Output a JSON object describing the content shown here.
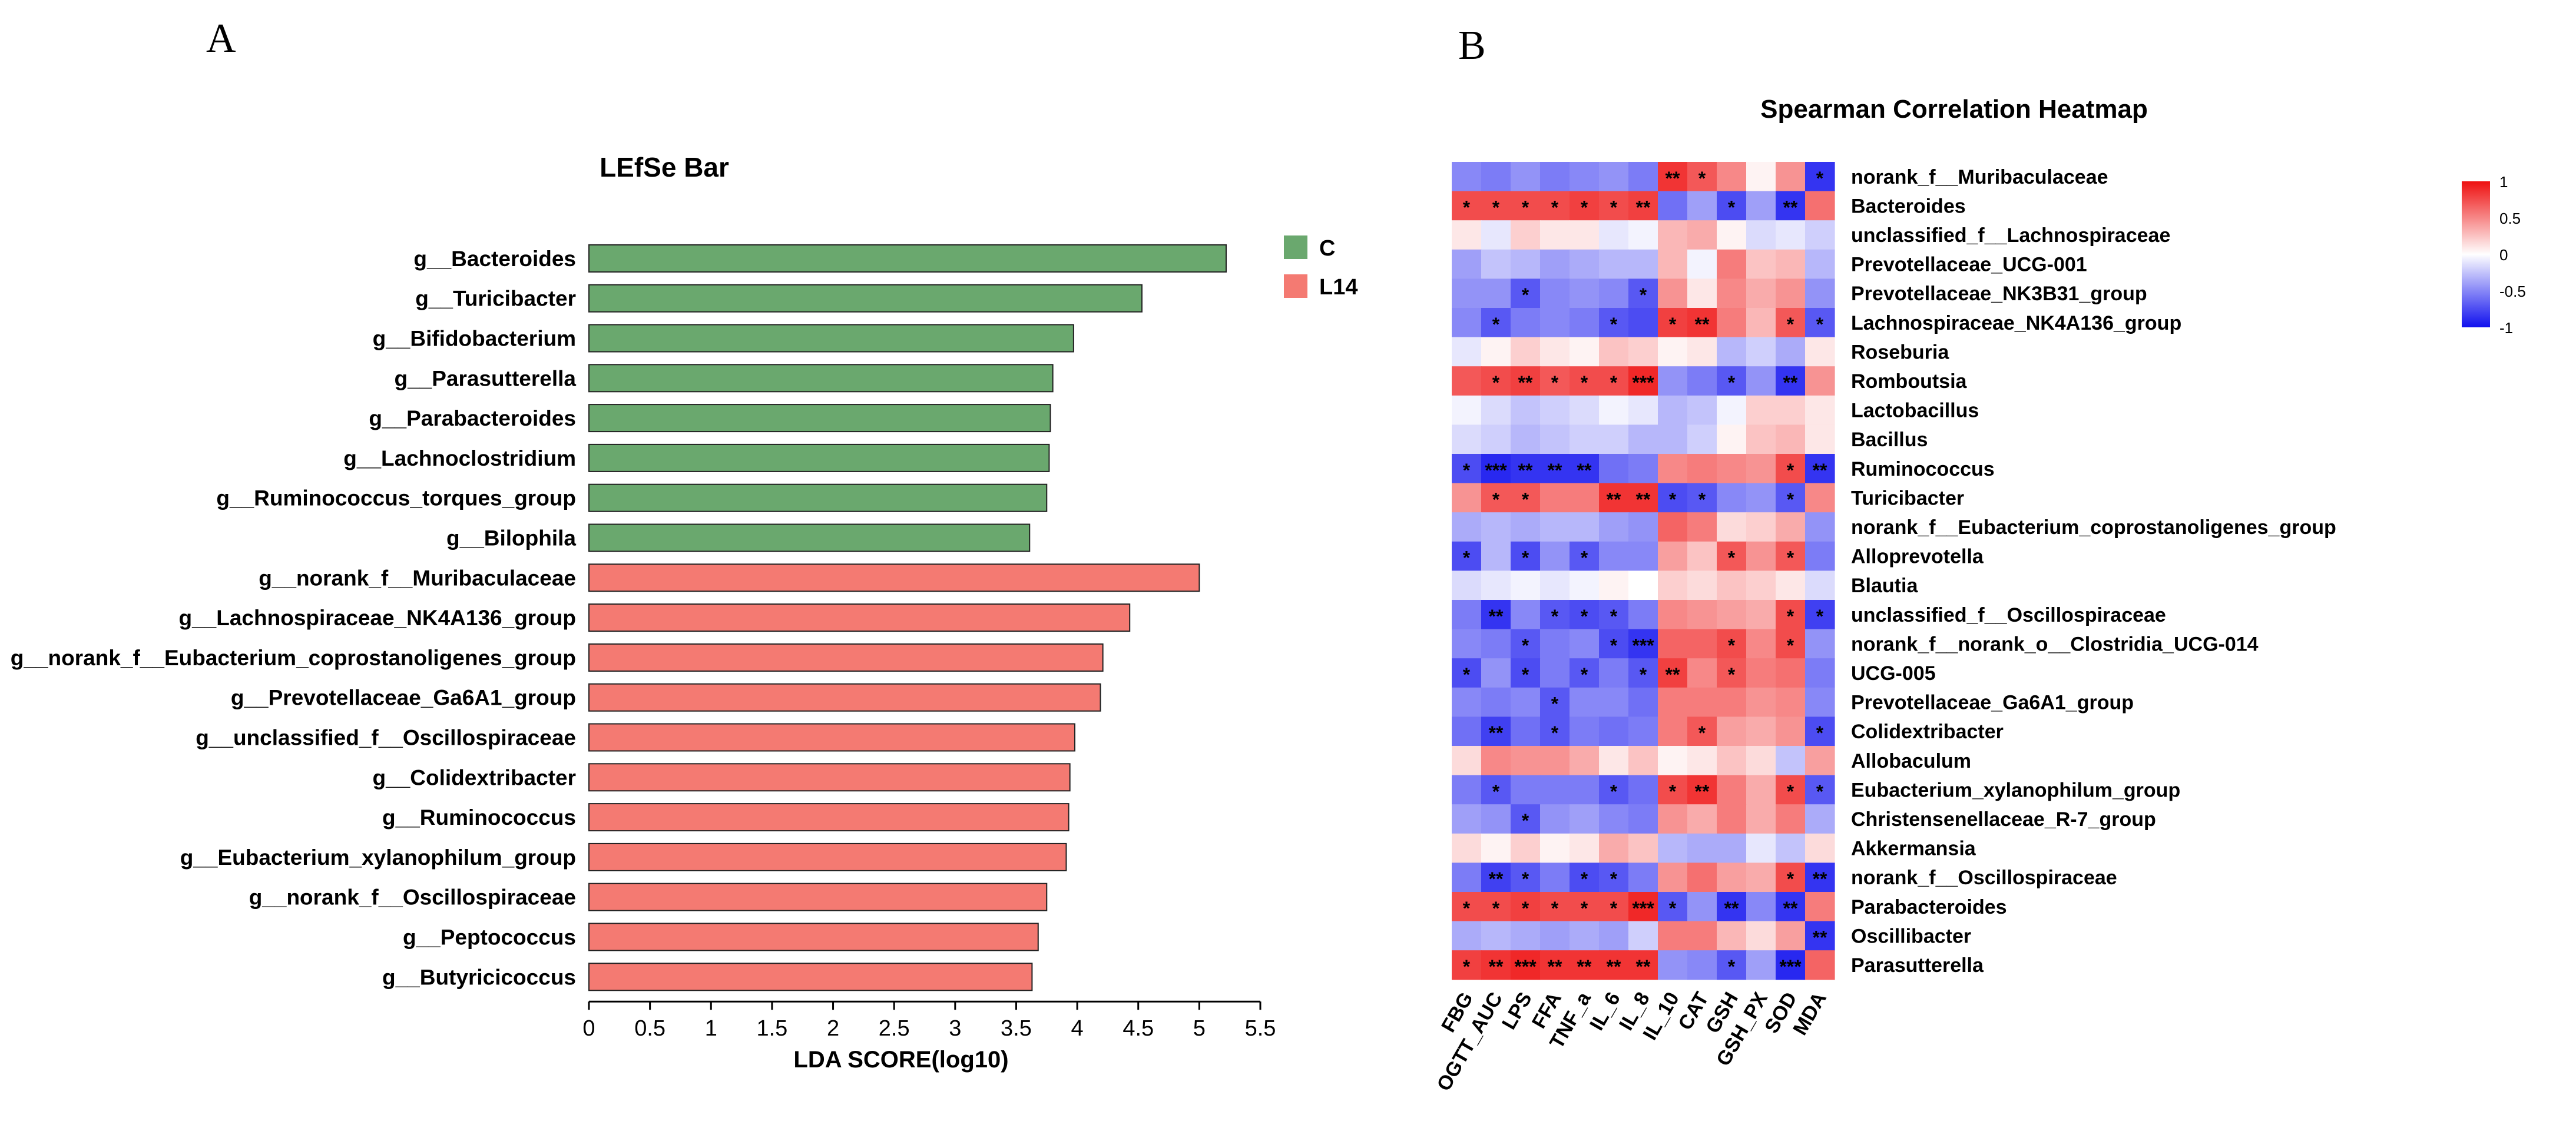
{
  "panels": {
    "a_label": "A",
    "b_label": "B"
  },
  "chart_data": [
    {
      "type": "bar",
      "orientation": "horizontal",
      "title": "LEfSe Bar",
      "xlabel": "LDA SCORE(log10)",
      "ylabel": "",
      "xlim": [
        0,
        5.5
      ],
      "xticks": [
        "0",
        "0.5",
        "1",
        "1.5",
        "2",
        "2.5",
        "3",
        "3.5",
        "4",
        "4.5",
        "5",
        "5.5"
      ],
      "legend": [
        {
          "name": "C",
          "color": "#6aa86e"
        },
        {
          "name": "L14",
          "color": "#f47a72"
        }
      ],
      "categories": [
        "g__Bacteroides",
        "g__Turicibacter",
        "g__Bifidobacterium",
        "g__Parasutterella",
        "g__Parabacteroides",
        "g__Lachnoclostridium",
        "g__Ruminococcus_torques_group",
        "g__Bilophila",
        "g__norank_f__Muribaculaceae",
        "g__Lachnospiraceae_NK4A136_group",
        "g__norank_f__Eubacterium_coprostanoligenes_group",
        "g__Prevotellaceae_Ga6A1_group",
        "g__unclassified_f__Oscillospiraceae",
        "g__Colidextribacter",
        "g__Ruminococcus",
        "g__Eubacterium_xylanophilum_group",
        "g__norank_f__Oscillospiraceae",
        "g__Peptococcus",
        "g__Butyricicoccus"
      ],
      "values": [
        5.22,
        4.53,
        3.97,
        3.8,
        3.78,
        3.77,
        3.75,
        3.61,
        5.0,
        4.43,
        4.21,
        4.19,
        3.98,
        3.94,
        3.93,
        3.91,
        3.75,
        3.68,
        3.63
      ],
      "groups": [
        "C",
        "C",
        "C",
        "C",
        "C",
        "C",
        "C",
        "C",
        "L14",
        "L14",
        "L14",
        "L14",
        "L14",
        "L14",
        "L14",
        "L14",
        "L14",
        "L14",
        "L14"
      ]
    },
    {
      "type": "heatmap",
      "title": "Spearman Correlation Heatmap",
      "columns": [
        "FBG",
        "OGTT_AUC",
        "LPS",
        "FFA",
        "TNF_a",
        "IL_6",
        "IL_8",
        "IL_10",
        "CAT",
        "GSH",
        "GSH_PX",
        "SOD",
        "MDA"
      ],
      "rows": [
        "norank_f__Muribaculaceae",
        "Bacteroides",
        "unclassified_f__Lachnospiraceae",
        "Prevotellaceae_UCG-001",
        "Prevotellaceae_NK3B31_group",
        "Lachnospiraceae_NK4A136_group",
        "Roseburia",
        "Romboutsia",
        "Lactobacillus",
        "Bacillus",
        "Ruminococcus",
        "Turicibacter",
        "norank_f__Eubacterium_coprostanoligenes_group",
        "Alloprevotella",
        "Blautia",
        "unclassified_f__Oscillospiraceae",
        "norank_f__norank_o__Clostridia_UCG-014",
        "UCG-005",
        "Prevotellaceae_Ga6A1_group",
        "Colidextribacter",
        "Allobaculum",
        "Eubacterium_xylanophilum_group",
        "Christensenellaceae_R-7_group",
        "Akkermansia",
        "norank_f__Oscillospiraceae",
        "Parabacteroides",
        "Oscillibacter",
        "Parasutterella"
      ],
      "values": [
        [
          -0.5,
          -0.55,
          -0.45,
          -0.55,
          -0.5,
          -0.45,
          -0.55,
          0.85,
          0.7,
          0.5,
          0.05,
          0.45,
          -0.85
        ],
        [
          0.75,
          0.75,
          0.75,
          0.75,
          0.8,
          0.75,
          0.8,
          -0.6,
          -0.4,
          -0.75,
          -0.4,
          -0.85,
          0.6
        ],
        [
          0.1,
          -0.1,
          0.2,
          0.1,
          0.1,
          -0.1,
          -0.05,
          0.3,
          0.35,
          0.05,
          -0.15,
          -0.1,
          -0.2
        ],
        [
          -0.4,
          -0.25,
          -0.3,
          -0.4,
          -0.35,
          -0.3,
          -0.3,
          0.3,
          -0.05,
          0.55,
          0.25,
          0.3,
          -0.3
        ],
        [
          -0.45,
          -0.45,
          -0.7,
          -0.5,
          -0.45,
          -0.5,
          -0.7,
          0.45,
          0.1,
          0.5,
          0.35,
          0.45,
          -0.45
        ],
        [
          -0.5,
          -0.7,
          -0.55,
          -0.5,
          -0.55,
          -0.7,
          -0.75,
          0.8,
          0.85,
          0.55,
          0.3,
          0.7,
          -0.7
        ],
        [
          -0.1,
          0.05,
          0.2,
          0.1,
          0.05,
          0.25,
          0.2,
          0.05,
          0.1,
          -0.3,
          -0.2,
          -0.35,
          0.1
        ],
        [
          0.7,
          0.75,
          0.8,
          0.7,
          0.75,
          0.75,
          0.9,
          -0.45,
          -0.55,
          -0.7,
          -0.45,
          -0.85,
          0.45
        ],
        [
          -0.05,
          -0.15,
          -0.25,
          -0.2,
          -0.15,
          -0.05,
          -0.1,
          -0.3,
          -0.25,
          -0.05,
          0.2,
          0.2,
          0.1
        ],
        [
          -0.15,
          -0.2,
          -0.3,
          -0.25,
          -0.2,
          -0.2,
          -0.3,
          -0.3,
          -0.2,
          0.05,
          0.25,
          0.3,
          0.1
        ],
        [
          -0.75,
          -0.9,
          -0.85,
          -0.85,
          -0.85,
          -0.6,
          -0.55,
          0.5,
          0.55,
          0.5,
          0.45,
          0.75,
          -0.85
        ],
        [
          0.45,
          0.7,
          0.7,
          0.55,
          0.55,
          0.85,
          0.85,
          -0.75,
          -0.7,
          -0.5,
          -0.45,
          -0.7,
          0.5
        ],
        [
          -0.35,
          -0.3,
          -0.35,
          -0.3,
          -0.3,
          -0.4,
          -0.45,
          0.65,
          0.55,
          0.15,
          0.2,
          0.35,
          -0.45
        ],
        [
          -0.75,
          -0.3,
          -0.75,
          -0.45,
          -0.7,
          -0.5,
          -0.5,
          0.4,
          0.25,
          0.7,
          0.45,
          0.7,
          -0.55
        ],
        [
          -0.15,
          -0.1,
          -0.05,
          -0.1,
          -0.05,
          0.05,
          0.0,
          0.2,
          0.15,
          0.25,
          0.2,
          0.1,
          -0.15
        ],
        [
          -0.55,
          -0.85,
          -0.5,
          -0.7,
          -0.75,
          -0.7,
          -0.55,
          0.5,
          0.45,
          0.4,
          0.35,
          0.75,
          -0.8
        ],
        [
          -0.5,
          -0.55,
          -0.7,
          -0.55,
          -0.5,
          -0.75,
          -0.85,
          0.65,
          0.65,
          0.75,
          0.5,
          0.75,
          -0.45
        ],
        [
          -0.75,
          -0.45,
          -0.75,
          -0.55,
          -0.7,
          -0.55,
          -0.7,
          0.8,
          0.5,
          0.7,
          0.55,
          0.6,
          -0.55
        ],
        [
          -0.5,
          -0.55,
          -0.5,
          -0.7,
          -0.5,
          -0.5,
          -0.6,
          0.55,
          0.55,
          0.55,
          0.45,
          0.5,
          -0.5
        ],
        [
          -0.6,
          -0.8,
          -0.6,
          -0.7,
          -0.55,
          -0.6,
          -0.55,
          0.55,
          0.7,
          0.4,
          0.35,
          0.45,
          -0.75
        ],
        [
          0.15,
          0.5,
          0.45,
          0.45,
          0.35,
          0.1,
          0.25,
          0.05,
          0.1,
          0.25,
          0.15,
          -0.25,
          0.4
        ],
        [
          -0.55,
          -0.7,
          -0.55,
          -0.55,
          -0.55,
          -0.7,
          -0.6,
          0.75,
          0.85,
          0.55,
          0.35,
          0.75,
          -0.7
        ],
        [
          -0.4,
          -0.45,
          -0.7,
          -0.45,
          -0.4,
          -0.5,
          -0.55,
          0.45,
          0.35,
          0.55,
          0.35,
          0.55,
          -0.35
        ],
        [
          0.15,
          0.05,
          0.2,
          0.05,
          0.1,
          0.35,
          0.25,
          -0.3,
          -0.35,
          -0.35,
          -0.1,
          -0.25,
          0.15
        ],
        [
          -0.55,
          -0.8,
          -0.7,
          -0.55,
          -0.75,
          -0.7,
          -0.55,
          0.45,
          0.6,
          0.4,
          0.35,
          0.75,
          -0.85
        ],
        [
          0.75,
          0.75,
          0.8,
          0.75,
          0.75,
          0.75,
          0.9,
          -0.7,
          -0.45,
          -0.85,
          -0.5,
          -0.85,
          0.55
        ],
        [
          -0.35,
          -0.3,
          -0.35,
          -0.4,
          -0.35,
          -0.4,
          -0.2,
          0.55,
          0.55,
          0.3,
          0.15,
          0.4,
          -0.85
        ],
        [
          0.8,
          0.85,
          0.9,
          0.85,
          0.85,
          0.85,
          0.85,
          -0.45,
          -0.5,
          -0.7,
          -0.4,
          -0.9,
          0.65
        ]
      ],
      "significance": [
        [
          "",
          "",
          "",
          "",
          "",
          "",
          "",
          "**",
          "*",
          "",
          "",
          "",
          "*"
        ],
        [
          "*",
          "*",
          "*",
          "*",
          "*",
          "*",
          "**",
          "",
          "",
          "*",
          "",
          "**",
          ""
        ],
        [
          "",
          "",
          "",
          "",
          "",
          "",
          "",
          "",
          "",
          "",
          "",
          "",
          ""
        ],
        [
          "",
          "",
          "",
          "",
          "",
          "",
          "",
          "",
          "",
          "",
          "",
          "",
          ""
        ],
        [
          "",
          "",
          "*",
          "",
          "",
          "",
          "*",
          "",
          "",
          "",
          "",
          "",
          ""
        ],
        [
          "",
          "*",
          "",
          "",
          "",
          "*",
          "",
          "*",
          "**",
          "",
          "",
          "*",
          "*"
        ],
        [
          "",
          "",
          "",
          "",
          "",
          "",
          "",
          "",
          "",
          "",
          "",
          "",
          ""
        ],
        [
          "",
          "*",
          "**",
          "*",
          "*",
          "*",
          "***",
          "",
          "",
          "*",
          "",
          "**",
          ""
        ],
        [
          "",
          "",
          "",
          "",
          "",
          "",
          "",
          "",
          "",
          "",
          "",
          "",
          ""
        ],
        [
          "",
          "",
          "",
          "",
          "",
          "",
          "",
          "",
          "",
          "",
          "",
          "",
          ""
        ],
        [
          "*",
          "***",
          "**",
          "**",
          "**",
          "",
          "",
          "",
          "",
          "",
          "",
          "*",
          "**"
        ],
        [
          "",
          "*",
          "*",
          "",
          "",
          "**",
          "**",
          "*",
          "*",
          "",
          "",
          "*",
          ""
        ],
        [
          "",
          "",
          "",
          "",
          "",
          "",
          "",
          "",
          "",
          "",
          "",
          "",
          ""
        ],
        [
          "*",
          "",
          "*",
          "",
          "*",
          "",
          "",
          "",
          "",
          "*",
          "",
          "*",
          ""
        ],
        [
          "",
          "",
          "",
          "",
          "",
          "",
          "",
          "",
          "",
          "",
          "",
          "",
          ""
        ],
        [
          "",
          "**",
          "",
          "*",
          "*",
          "*",
          "",
          "",
          "",
          "",
          "",
          "*",
          "*"
        ],
        [
          "",
          "",
          "*",
          "",
          "",
          "*",
          "***",
          "",
          "",
          "*",
          "",
          "*",
          ""
        ],
        [
          "*",
          "",
          "*",
          "",
          "*",
          "",
          "*",
          "**",
          "",
          "*",
          "",
          "",
          ""
        ],
        [
          "",
          "",
          "",
          "*",
          "",
          "",
          "",
          "",
          "",
          "",
          "",
          "",
          ""
        ],
        [
          "",
          "**",
          "",
          "*",
          "",
          "",
          "",
          "",
          "*",
          "",
          "",
          "",
          "*"
        ],
        [
          "",
          "",
          "",
          "",
          "",
          "",
          "",
          "",
          "",
          "",
          "",
          "",
          ""
        ],
        [
          "",
          "*",
          "",
          "",
          "",
          "*",
          "",
          "*",
          "**",
          "",
          "",
          "*",
          "*"
        ],
        [
          "",
          "",
          "*",
          "",
          "",
          "",
          "",
          "",
          "",
          "",
          "",
          "",
          ""
        ],
        [
          "",
          "",
          "",
          "",
          "",
          "",
          "",
          "",
          "",
          "",
          "",
          "",
          ""
        ],
        [
          "",
          "**",
          "*",
          "",
          "*",
          "*",
          "",
          "",
          "",
          "",
          "",
          "*",
          "**"
        ],
        [
          "*",
          "*",
          "*",
          "*",
          "*",
          "*",
          "***",
          "*",
          "",
          "**",
          "",
          "**",
          ""
        ],
        [
          "",
          "",
          "",
          "",
          "",
          "",
          "",
          "",
          "",
          "",
          "",
          "",
          "**"
        ],
        [
          "*",
          "**",
          "***",
          "**",
          "**",
          "**",
          "**",
          "",
          "",
          "*",
          "",
          "***",
          ""
        ]
      ],
      "colorbar": {
        "ticks": [
          "1",
          "0.5",
          "0",
          "-0.5",
          "-1"
        ],
        "range": [
          -1,
          1
        ],
        "colors": [
          "#1010ee",
          "#ffffff",
          "#ee1010"
        ]
      }
    }
  ]
}
